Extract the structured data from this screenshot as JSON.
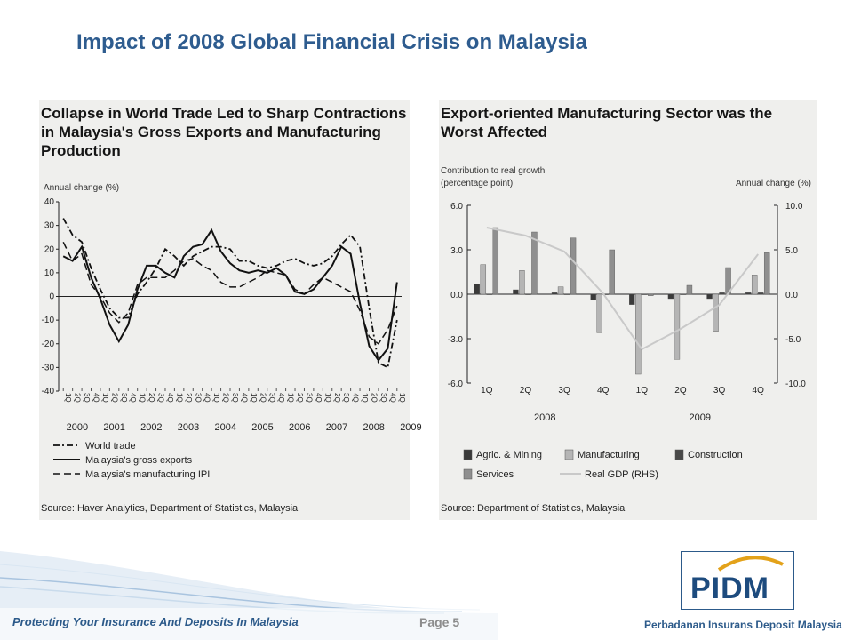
{
  "slide": {
    "title": "Impact of 2008 Global Financial Crisis on Malaysia",
    "footer_left": "Protecting Your Insurance And Deposits In Malaysia",
    "page": "Page 5",
    "footer_right": "Perbadanan Insurans Deposit Malaysia",
    "logo": "PIDM"
  },
  "colors": {
    "title": "#2e5c8f",
    "panel_bg": "#efefed",
    "agric": "#3a3a3a",
    "manufacturing": "#b5b5b5",
    "construction": "#484848",
    "services": "#8f8f8f",
    "gdp_line": "#c9c9c9",
    "accent": "#2c5a8a"
  },
  "chart_data": [
    {
      "type": "line",
      "title": "Collapse in World Trade Led to Sharp Contractions in Malaysia's Gross Exports and Manufacturing Production",
      "ylabel": "Annual change (%)",
      "ylim": [
        -40,
        40
      ],
      "yticks": [
        40,
        30,
        20,
        10,
        0,
        -10,
        -20,
        -30,
        -40
      ],
      "quarter_labels": [
        "1Q",
        "2Q",
        "3Q",
        "4Q"
      ],
      "years": [
        "2000",
        "2001",
        "2002",
        "2003",
        "2004",
        "2005",
        "2006",
        "2007",
        "2008",
        "2009"
      ],
      "legend": [
        "World trade",
        "Malaysia's gross exports",
        "Malaysia's manufacturing IPI"
      ],
      "series": [
        {
          "name": "World trade",
          "style": "dashdot",
          "values": [
            33,
            26,
            23,
            12,
            3,
            -5,
            -9,
            -9,
            1,
            6,
            12,
            20,
            17,
            13,
            17,
            19,
            21,
            21,
            20,
            15,
            15,
            13,
            12,
            13,
            15,
            16,
            14,
            13,
            14,
            17,
            22,
            26,
            21,
            -5,
            -28,
            -30,
            -10
          ]
        },
        {
          "name": "Malaysia's gross exports",
          "style": "solid",
          "values": [
            17,
            15,
            21,
            8,
            -1,
            -12,
            -19,
            -12,
            3,
            13,
            13,
            10,
            8,
            17,
            21,
            22,
            28,
            19,
            14,
            11,
            10,
            11,
            10,
            12,
            9,
            2,
            1,
            3,
            8,
            13,
            21,
            18,
            -3,
            -21,
            -27,
            -22,
            6
          ]
        },
        {
          "name": "Malaysia's manufacturing IPI",
          "style": "dashed",
          "values": [
            23,
            15,
            18,
            5,
            0,
            -7,
            -11,
            -7,
            5,
            8,
            8,
            8,
            11,
            15,
            16,
            13,
            11,
            6,
            4,
            4,
            6,
            8,
            11,
            10,
            9,
            3,
            1,
            5,
            8,
            6,
            4,
            2,
            -6,
            -17,
            -20,
            -14,
            -4
          ]
        }
      ]
    },
    {
      "type": "bar",
      "title": "Export-oriented Manufacturing Sector was the Worst Affected",
      "ylabel": "Contribution to real growth (percentage point)",
      "y2label": "Annual change (%)",
      "ylim": [
        -6.0,
        6.0
      ],
      "yticks": [
        "6.0",
        "3.0",
        "0.0",
        "-3.0",
        "-6.0"
      ],
      "y2lim": [
        -10.0,
        10.0
      ],
      "y2ticks": [
        "10.0",
        "5.0",
        "0.0",
        "-5.0",
        "-10.0"
      ],
      "categories": [
        "1Q",
        "2Q",
        "3Q",
        "4Q",
        "1Q",
        "2Q",
        "3Q",
        "4Q"
      ],
      "years": [
        "2008",
        "2009"
      ],
      "series": [
        {
          "name": "Agric. & Mining",
          "values": [
            0.7,
            0.3,
            0.1,
            -0.4,
            -0.7,
            -0.3,
            -0.3,
            0.1
          ]
        },
        {
          "name": "Manufacturing",
          "values": [
            2.0,
            1.6,
            0.5,
            -2.6,
            -5.4,
            -4.4,
            -2.5,
            1.3
          ]
        },
        {
          "name": "Construction",
          "values": [
            0.0,
            0.0,
            0.0,
            0.0,
            0.0,
            0.0,
            0.1,
            0.1
          ]
        },
        {
          "name": "Services",
          "values": [
            4.5,
            4.2,
            3.8,
            3.0,
            -0.1,
            0.6,
            1.8,
            2.8
          ]
        },
        {
          "name": "Real GDP (RHS)",
          "type": "line",
          "values": [
            7.5,
            6.6,
            4.8,
            0.1,
            -6.2,
            -3.9,
            -1.2,
            4.5
          ]
        }
      ],
      "source": "Source: Department of Statistics, Malaysia"
    }
  ],
  "left_source": "Source: Haver Analytics, Department of Statistics, Malaysia"
}
